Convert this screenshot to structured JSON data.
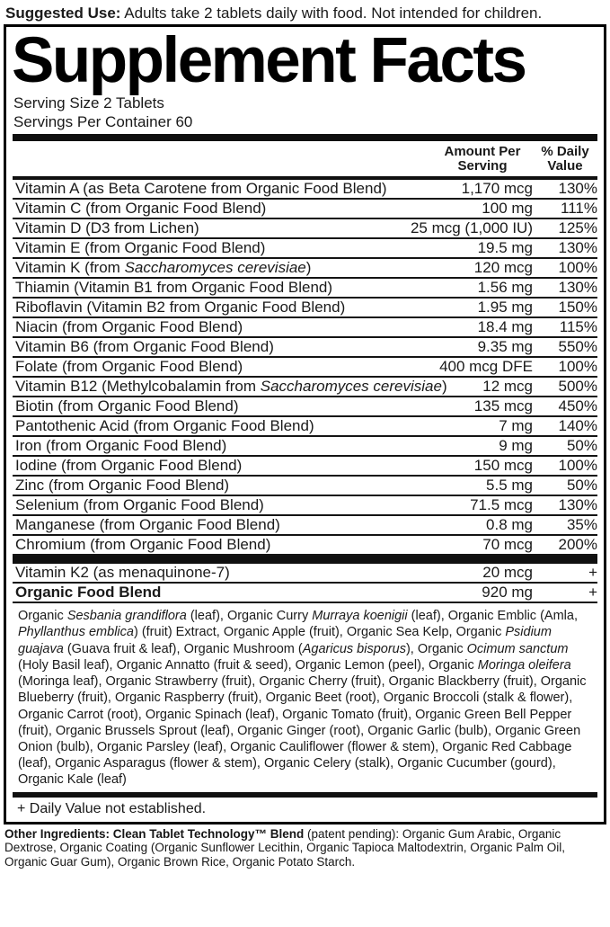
{
  "colors": {
    "ink": "#111111",
    "background": "#ffffff"
  },
  "suggested_use": [
    {
      "t": "Suggested Use:",
      "b": true
    },
    {
      "t": " Adults take 2 tablets daily with food. Not intended for children."
    }
  ],
  "panel": {
    "title": "Supplement Facts",
    "serving_size": "Serving Size 2 Tablets",
    "servings_per_container": "Servings Per Container 60",
    "columns": {
      "amount": [
        "Amount Per",
        "Serving"
      ],
      "dv": [
        "% Daily",
        "Value"
      ]
    },
    "rows": [
      {
        "name": [
          {
            "t": "Vitamin A (as Beta Carotene from Organic Food Blend)"
          }
        ],
        "amount": "1,170 mcg",
        "dv": "130%"
      },
      {
        "name": [
          {
            "t": "Vitamin C (from Organic Food Blend)"
          }
        ],
        "amount": "100 mg",
        "dv": "111%"
      },
      {
        "name": [
          {
            "t": "Vitamin D (D3 from Lichen)"
          }
        ],
        "amount": "25 mcg (1,000 IU)",
        "dv": "125%"
      },
      {
        "name": [
          {
            "t": "Vitamin E (from Organic Food Blend)"
          }
        ],
        "amount": "19.5 mg",
        "dv": "130%"
      },
      {
        "name": [
          {
            "t": "Vitamin K (from "
          },
          {
            "t": "Saccharomyces cerevisiae",
            "i": true
          },
          {
            "t": ")"
          }
        ],
        "amount": "120 mcg",
        "dv": "100%"
      },
      {
        "name": [
          {
            "t": "Thiamin (Vitamin B1 from Organic Food Blend)"
          }
        ],
        "amount": "1.56 mg",
        "dv": "130%"
      },
      {
        "name": [
          {
            "t": "Riboflavin (Vitamin B2 from Organic Food Blend)"
          }
        ],
        "amount": "1.95 mg",
        "dv": "150%"
      },
      {
        "name": [
          {
            "t": "Niacin (from Organic Food Blend)"
          }
        ],
        "amount": "18.4 mg",
        "dv": "115%"
      },
      {
        "name": [
          {
            "t": "Vitamin B6 (from Organic Food Blend)"
          }
        ],
        "amount": "9.35 mg",
        "dv": "550%"
      },
      {
        "name": [
          {
            "t": "Folate (from Organic Food Blend)"
          }
        ],
        "amount": "400 mcg DFE",
        "dv": "100%"
      },
      {
        "name": [
          {
            "t": "Vitamin B12 (Methylcobalamin from "
          },
          {
            "t": "Saccharomyces cerevisiae",
            "i": true
          },
          {
            "t": ")"
          }
        ],
        "amount": "12 mcg",
        "dv": "500%"
      },
      {
        "name": [
          {
            "t": "Biotin (from Organic Food Blend)"
          }
        ],
        "amount": "135 mcg",
        "dv": "450%"
      },
      {
        "name": [
          {
            "t": "Pantothenic Acid (from Organic Food Blend)"
          }
        ],
        "amount": "7 mg",
        "dv": "140%"
      },
      {
        "name": [
          {
            "t": "Iron (from Organic Food Blend)"
          }
        ],
        "amount": "9 mg",
        "dv": "50%"
      },
      {
        "name": [
          {
            "t": "Iodine (from Organic Food Blend)"
          }
        ],
        "amount": "150 mcg",
        "dv": "100%"
      },
      {
        "name": [
          {
            "t": "Zinc (from Organic Food Blend)"
          }
        ],
        "amount": "5.5 mg",
        "dv": "50%"
      },
      {
        "name": [
          {
            "t": "Selenium (from Organic Food Blend)"
          }
        ],
        "amount": "71.5 mcg",
        "dv": "130%"
      },
      {
        "name": [
          {
            "t": "Manganese (from Organic Food Blend)"
          }
        ],
        "amount": "0.8 mg",
        "dv": "35%"
      },
      {
        "name": [
          {
            "t": "Chromium (from Organic Food Blend)"
          }
        ],
        "amount": "70 mcg",
        "dv": "200%"
      }
    ],
    "extra_rows": [
      {
        "name": [
          {
            "t": "Vitamin K2 (as menaquinone-7)"
          }
        ],
        "amount": "20 mcg",
        "dv": "+"
      },
      {
        "name": [
          {
            "t": "Organic Food Blend",
            "b": true
          }
        ],
        "amount": "920 mg",
        "dv": "+"
      }
    ],
    "blend_description": [
      {
        "t": "Organic "
      },
      {
        "t": "Sesbania grandiflora",
        "i": true
      },
      {
        "t": " (leaf), Organic Curry "
      },
      {
        "t": "Murraya koenigii",
        "i": true
      },
      {
        "t": " (leaf), Organic Emblic (Amla, "
      },
      {
        "t": "Phyllanthus emblica",
        "i": true
      },
      {
        "t": ") (fruit) Extract, Organic Apple (fruit), Organic Sea Kelp, Organic "
      },
      {
        "t": "Psidium guajava",
        "i": true
      },
      {
        "t": " (Guava fruit & leaf), Organic Mushroom ("
      },
      {
        "t": "Agaricus bisporus",
        "i": true
      },
      {
        "t": "), Organic "
      },
      {
        "t": "Ocimum sanctum",
        "i": true
      },
      {
        "t": " (Holy Basil leaf), Organic Annatto (fruit & seed), Organic Lemon (peel), Organic "
      },
      {
        "t": "Moringa oleifera",
        "i": true
      },
      {
        "t": " (Moringa leaf), Organic Strawberry (fruit), Organic Cherry (fruit), Organic Blackberry (fruit), Organic Blueberry (fruit), Organic Raspberry (fruit), Organic Beet (root), Organic Broccoli (stalk & flower), Organic Carrot (root), Organic Spinach (leaf), Organic Tomato (fruit), Organic Green Bell Pepper (fruit), Organic Brussels Sprout (leaf), Organic Ginger (root), Organic Garlic (bulb), Organic Green Onion (bulb), Organic Parsley (leaf), Organic Cauliflower (flower & stem), Organic Red Cabbage (leaf), Organic Asparagus (flower & stem), Organic Celery (stalk), Organic Cucumber (gourd), Organic Kale (leaf)"
      }
    ],
    "footnote": "+ Daily Value not established."
  },
  "other_ingredients": [
    {
      "t": "Other Ingredients: Clean Tablet Technology™ Blend",
      "b": true
    },
    {
      "t": " (patent pending): Organic Gum Arabic, Organic Dextrose, Organic Coating (Organic Sunflower Lecithin, Organic Tapioca Maltodextrin, Organic Palm Oil, Organic Guar Gum), Organic Brown Rice, Organic Potato Starch."
    }
  ]
}
